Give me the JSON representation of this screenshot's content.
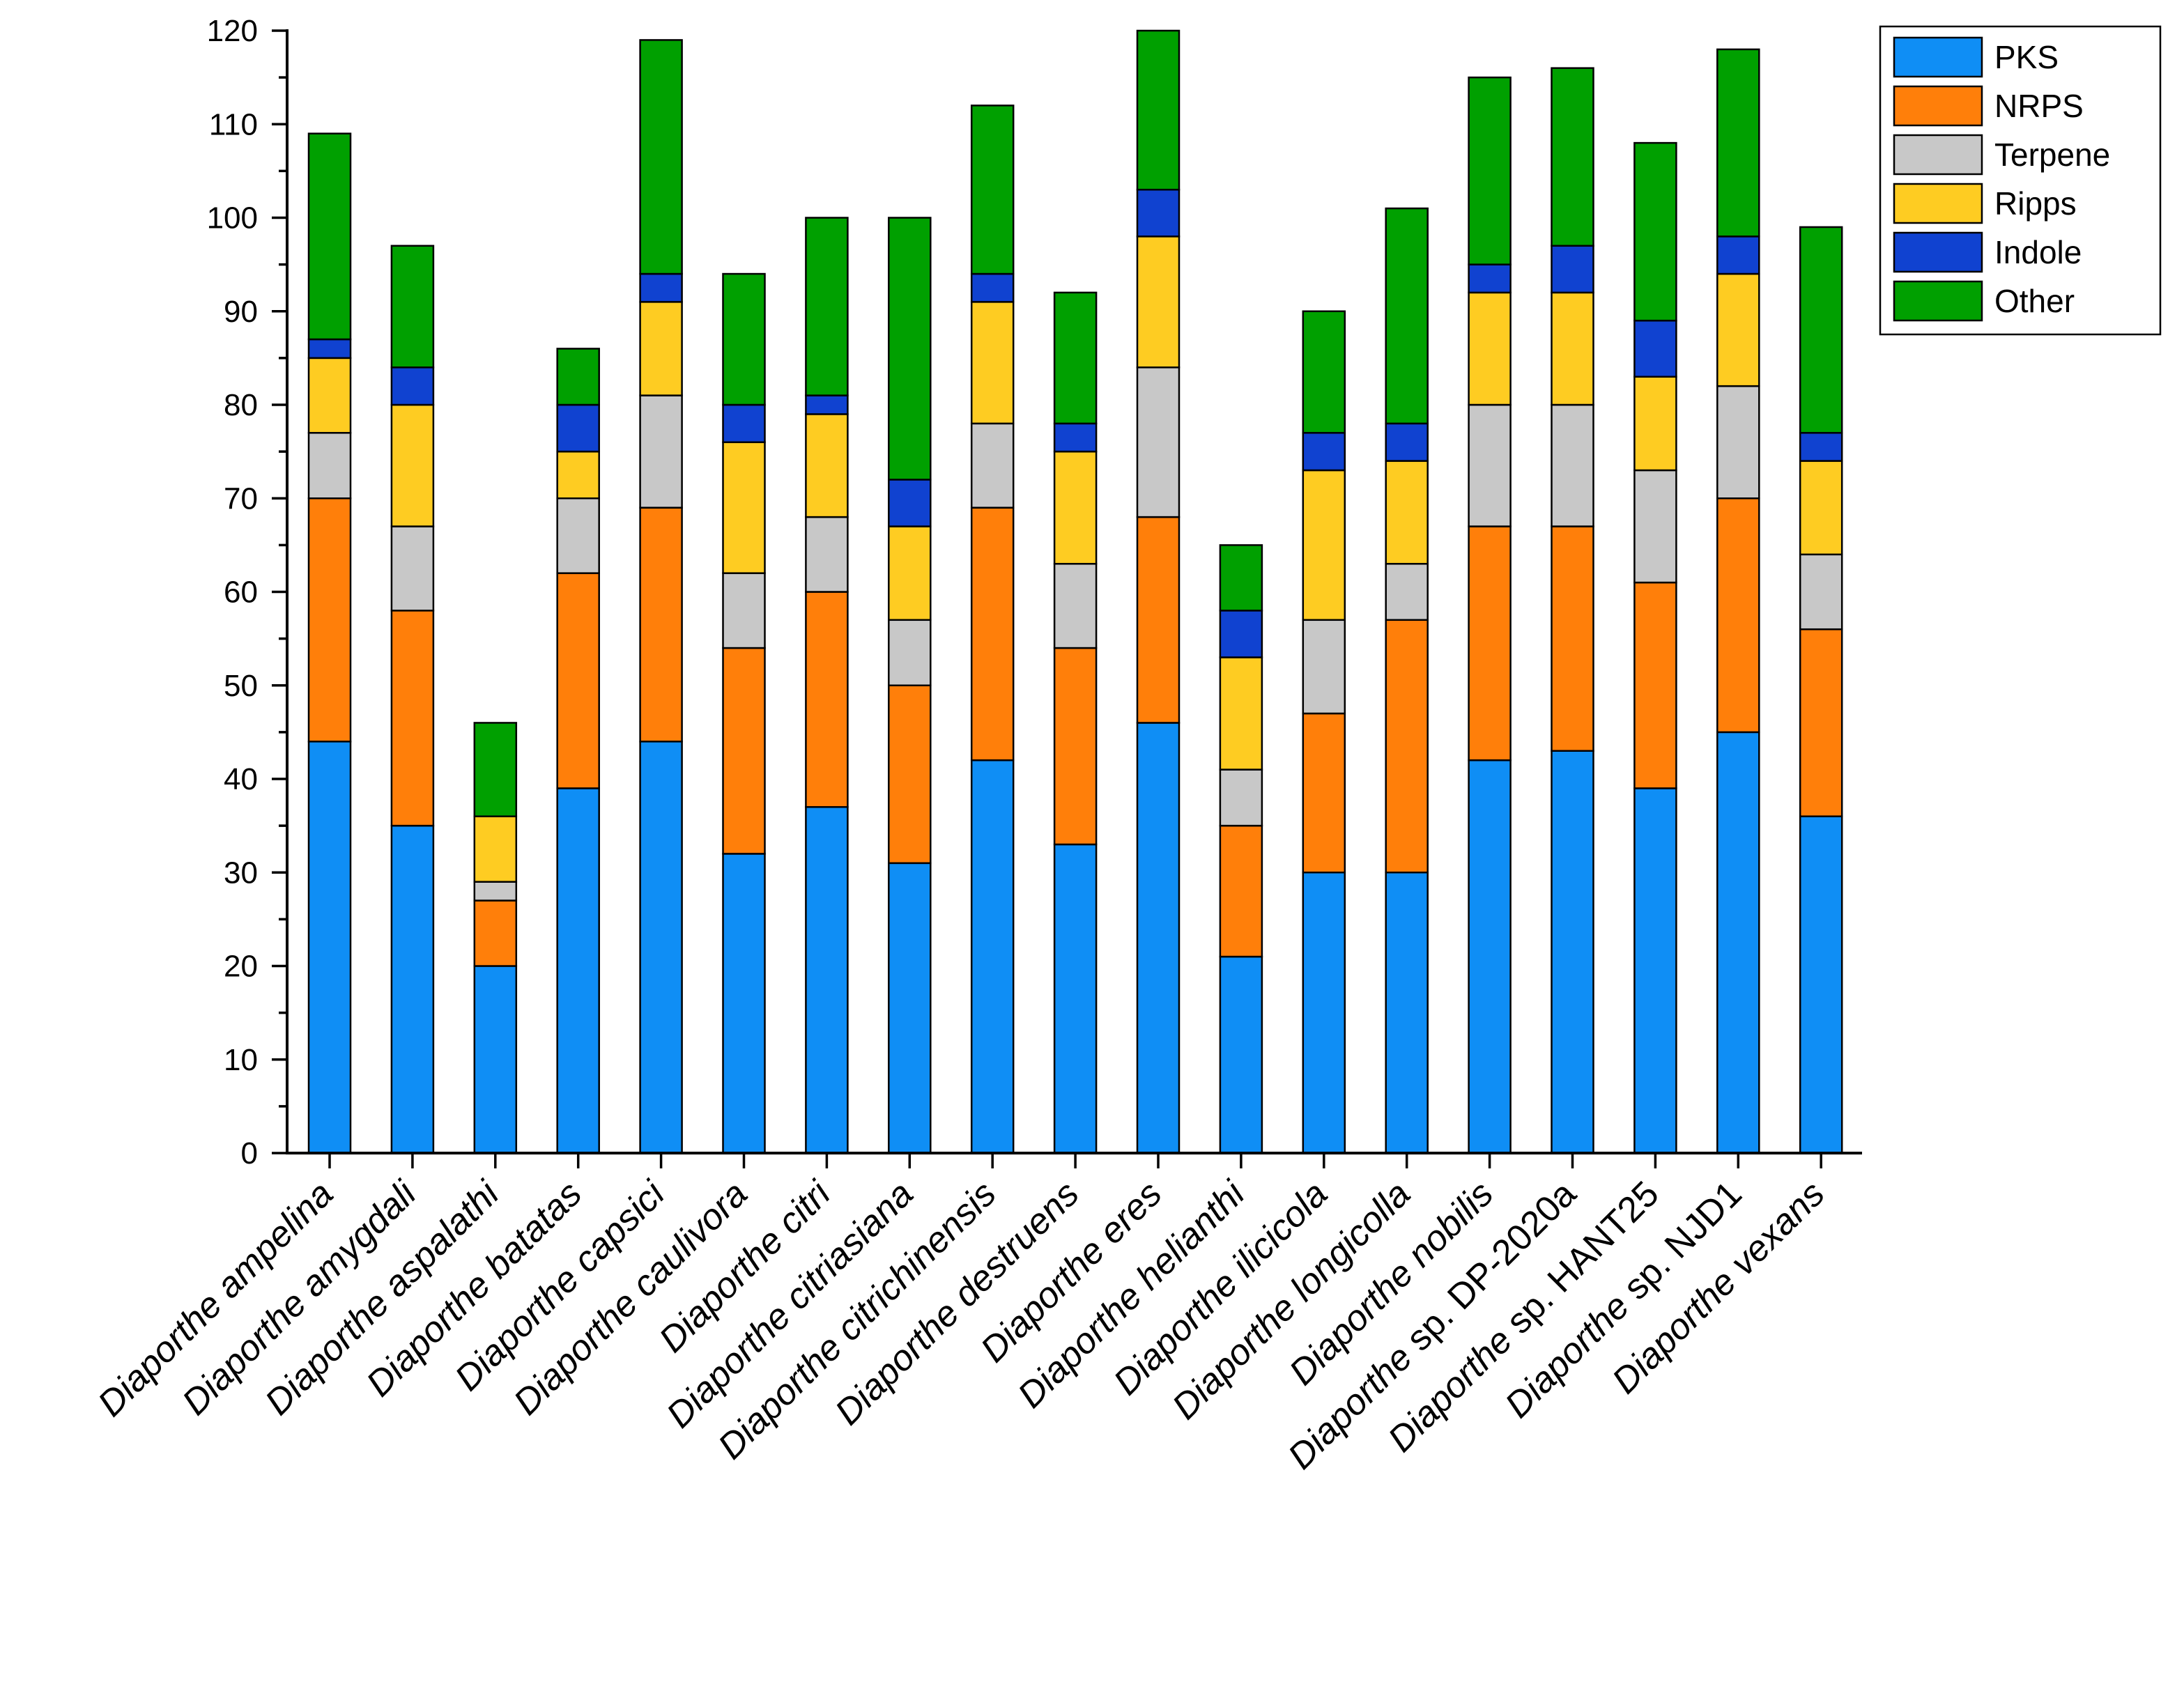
{
  "chart_data": {
    "type": "bar",
    "stacked": true,
    "title": "",
    "xlabel": "",
    "ylabel": "",
    "ylim": [
      0,
      120
    ],
    "y_ticks": [
      "0",
      "10",
      "20",
      "30",
      "40",
      "50",
      "60",
      "70",
      "80",
      "90",
      "100",
      "110",
      "120"
    ],
    "grid": false,
    "legend_position": "top-right",
    "categories": [
      "Diaporthe ampelina",
      "Diaporthe amygdali",
      "Diaporthe aspalathi",
      "Diaporthe batatas",
      "Diaporthe capsici",
      "Diaporthe caulivora",
      "Diaporthe citri",
      "Diaporthe citriasiana",
      "Diaporthe citrichinensis",
      "Diaporthe destruens",
      "Diaporthe eres",
      "Diaporthe helianthi",
      "Diaporthe ilicicola",
      "Diaporthe longicolla",
      "Diaporthe nobilis",
      "Diaporthe sp. DP-2020a",
      "Diaporthe sp. HANT25",
      "Diaporthe sp. NJD1",
      "Diaporthe vexans"
    ],
    "series": [
      {
        "name": "PKS",
        "color": "#0F8EF5",
        "values": [
          44,
          35,
          20,
          39,
          44,
          32,
          37,
          31,
          42,
          33,
          46,
          21,
          30,
          30,
          42,
          43,
          39,
          45,
          36
        ]
      },
      {
        "name": "NRPS",
        "color": "#FF7F0A",
        "values": [
          26,
          23,
          7,
          23,
          25,
          22,
          23,
          19,
          27,
          21,
          22,
          14,
          17,
          27,
          25,
          24,
          22,
          25,
          20
        ]
      },
      {
        "name": "Terpene",
        "color": "#C8C8C8",
        "values": [
          7,
          9,
          2,
          8,
          12,
          8,
          8,
          7,
          9,
          9,
          16,
          6,
          10,
          6,
          13,
          13,
          12,
          12,
          8
        ]
      },
      {
        "name": "Ripps",
        "color": "#FECC22",
        "values": [
          8,
          13,
          7,
          5,
          10,
          14,
          11,
          10,
          13,
          12,
          14,
          12,
          16,
          11,
          12,
          12,
          10,
          12,
          10
        ]
      },
      {
        "name": "Indole",
        "color": "#1042D0",
        "values": [
          2,
          4,
          0,
          5,
          3,
          4,
          2,
          5,
          3,
          3,
          5,
          5,
          4,
          4,
          3,
          5,
          6,
          4,
          3
        ]
      },
      {
        "name": "Other",
        "color": "#00A000",
        "values": [
          22,
          13,
          10,
          6,
          25,
          14,
          19,
          28,
          18,
          14,
          17,
          7,
          13,
          23,
          20,
          19,
          19,
          20,
          22
        ]
      }
    ]
  }
}
